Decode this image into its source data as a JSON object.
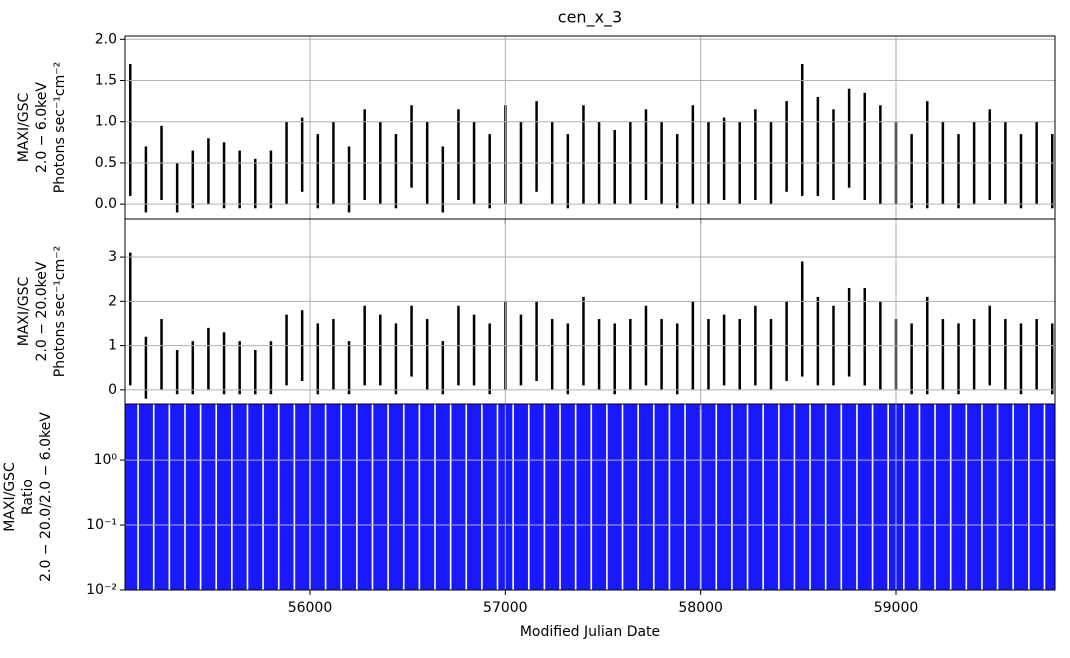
{
  "chart_data": [
    {
      "type": "errorbar",
      "title": "cen_x_3",
      "ylabel": [
        "MAXI/GSC",
        "2.0 − 6.0keV",
        "Photons sec⁻¹cm⁻²"
      ],
      "color": "#000000",
      "grid": true,
      "log": false,
      "xlim": [
        55053,
        59814
      ],
      "xticks": [
        56000,
        57000,
        58000,
        59000
      ],
      "ylim": [
        -0.18,
        2.04
      ],
      "yticks": [
        {
          "value": 0,
          "label": "0.0"
        },
        0.5,
        {
          "value": 1,
          "label": "1.0"
        },
        1.5,
        {
          "value": 2,
          "label": "2.0"
        }
      ],
      "x": [
        55080,
        55160,
        55240,
        55320,
        55400,
        55480,
        55560,
        55640,
        55720,
        55800,
        55880,
        55960,
        56040,
        56120,
        56200,
        56280,
        56360,
        56440,
        56520,
        56600,
        56680,
        56760,
        56840,
        56920,
        57000,
        57080,
        57160,
        57240,
        57320,
        57400,
        57480,
        57560,
        57640,
        57720,
        57800,
        57880,
        57960,
        58040,
        58120,
        58200,
        58280,
        58360,
        58440,
        58520,
        58600,
        58680,
        58760,
        58840,
        58920,
        59000,
        59080,
        59160,
        59240,
        59320,
        59400,
        59480,
        59560,
        59640,
        59720,
        59800
      ],
      "values": [
        0.9,
        0.3,
        0.5,
        0.2,
        0.3,
        0.4,
        0.35,
        0.3,
        0.25,
        0.3,
        0.5,
        0.6,
        0.4,
        0.5,
        0.3,
        0.6,
        0.5,
        0.4,
        0.7,
        0.5,
        0.3,
        0.6,
        0.5,
        0.4,
        0.6,
        0.5,
        0.7,
        0.5,
        0.4,
        0.6,
        0.5,
        0.45,
        0.5,
        0.6,
        0.5,
        0.4,
        0.6,
        0.5,
        0.55,
        0.5,
        0.6,
        0.5,
        0.7,
        0.9,
        0.7,
        0.6,
        0.8,
        0.7,
        0.6,
        0.5,
        0.4,
        0.6,
        0.5,
        0.4,
        0.5,
        0.6,
        0.5,
        0.4,
        0.5,
        0.4
      ],
      "errors": [
        0.8,
        0.4,
        0.45,
        0.3,
        0.35,
        0.4,
        0.4,
        0.35,
        0.3,
        0.35,
        0.5,
        0.45,
        0.45,
        0.5,
        0.4,
        0.55,
        0.5,
        0.45,
        0.5,
        0.5,
        0.4,
        0.55,
        0.5,
        0.45,
        0.6,
        0.5,
        0.55,
        0.5,
        0.45,
        0.6,
        0.5,
        0.45,
        0.5,
        0.55,
        0.5,
        0.45,
        0.6,
        0.5,
        0.5,
        0.5,
        0.55,
        0.5,
        0.55,
        0.8,
        0.6,
        0.55,
        0.6,
        0.65,
        0.6,
        0.5,
        0.45,
        0.65,
        0.5,
        0.45,
        0.5,
        0.55,
        0.5,
        0.45,
        0.5,
        0.45
      ]
    },
    {
      "type": "errorbar",
      "ylabel": [
        "MAXI/GSC",
        "2.0 − 20.0keV",
        "Photons sec⁻¹cm⁻²"
      ],
      "color": "#000000",
      "grid": true,
      "log": false,
      "xlim": [
        55053,
        59814
      ],
      "xticks": [
        56000,
        57000,
        58000,
        59000
      ],
      "ylim": [
        -0.32,
        3.86
      ],
      "yticks": [
        0,
        1,
        2,
        3
      ],
      "x": [
        55080,
        55160,
        55240,
        55320,
        55400,
        55480,
        55560,
        55640,
        55720,
        55800,
        55880,
        55960,
        56040,
        56120,
        56200,
        56280,
        56360,
        56440,
        56520,
        56600,
        56680,
        56760,
        56840,
        56920,
        57000,
        57080,
        57160,
        57240,
        57320,
        57400,
        57480,
        57560,
        57640,
        57720,
        57800,
        57880,
        57960,
        58040,
        58120,
        58200,
        58280,
        58360,
        58440,
        58520,
        58600,
        58680,
        58760,
        58840,
        58920,
        59000,
        59080,
        59160,
        59240,
        59320,
        59400,
        59480,
        59560,
        59640,
        59720,
        59800
      ],
      "values": [
        1.6,
        0.5,
        0.8,
        0.4,
        0.5,
        0.7,
        0.6,
        0.5,
        0.4,
        0.5,
        0.9,
        1.0,
        0.7,
        0.8,
        0.5,
        1.0,
        0.9,
        0.7,
        1.1,
        0.8,
        0.5,
        1.0,
        0.9,
        0.7,
        1.0,
        0.9,
        1.1,
        0.8,
        0.7,
        1.1,
        0.8,
        0.7,
        0.8,
        1.0,
        0.8,
        0.7,
        1.0,
        0.8,
        0.9,
        0.8,
        1.0,
        0.8,
        1.1,
        1.6,
        1.1,
        1.0,
        1.3,
        1.2,
        1.0,
        0.8,
        0.7,
        1.0,
        0.8,
        0.7,
        0.8,
        1.0,
        0.8,
        0.7,
        0.8,
        0.7
      ],
      "errors": [
        1.5,
        0.7,
        0.8,
        0.5,
        0.6,
        0.7,
        0.7,
        0.6,
        0.5,
        0.6,
        0.8,
        0.8,
        0.8,
        0.8,
        0.6,
        0.9,
        0.8,
        0.8,
        0.8,
        0.8,
        0.6,
        0.9,
        0.8,
        0.8,
        1.0,
        0.8,
        0.9,
        0.8,
        0.8,
        1.0,
        0.8,
        0.8,
        0.8,
        0.9,
        0.8,
        0.8,
        1.0,
        0.8,
        0.8,
        0.8,
        0.9,
        0.8,
        0.9,
        1.3,
        1.0,
        0.9,
        1.0,
        1.1,
        1.0,
        0.8,
        0.8,
        1.1,
        0.8,
        0.8,
        0.8,
        0.9,
        0.8,
        0.8,
        0.8,
        0.8
      ]
    },
    {
      "type": "errorbar",
      "ylabel": [
        "MAXI/GSC",
        "Ratio",
        "2.0 − 20.0/2.0 − 6.0keV"
      ],
      "xlabel": "Modified Julian Date",
      "color": "#0000ff",
      "grid": true,
      "log": true,
      "xlim": [
        55053,
        59814
      ],
      "xticks": [
        56000,
        57000,
        58000,
        59000
      ],
      "ylim": [
        0.01,
        7.3
      ],
      "yticks": [
        {
          "value": 0.01,
          "label": "10⁻²"
        },
        {
          "value": 0.1,
          "label": "10⁻¹"
        },
        {
          "value": 1,
          "label": "10⁰"
        }
      ],
      "x": [
        55080,
        55160,
        55240,
        55320,
        55400,
        55480,
        55560,
        55640,
        55720,
        55800,
        55880,
        55960,
        56040,
        56120,
        56200,
        56280,
        56360,
        56440,
        56520,
        56600,
        56680,
        56760,
        56840,
        56920,
        57000,
        57080,
        57160,
        57240,
        57320,
        57400,
        57480,
        57560,
        57640,
        57720,
        57800,
        57880,
        57960,
        58040,
        58120,
        58200,
        58280,
        58360,
        58440,
        58520,
        58600,
        58680,
        58760,
        58840,
        58920,
        59000,
        59080,
        59160,
        59240,
        59320,
        59400,
        59480,
        59560,
        59640,
        59720,
        59800
      ],
      "values": [
        1.8,
        1.7,
        1.6,
        2,
        1.7,
        1.8,
        1.7,
        1.7,
        1.6,
        1.7,
        1.8,
        1.7,
        1.8,
        1.6,
        1.7,
        1.7,
        1.8,
        1.8,
        1.6,
        1.6,
        1.7,
        1.7,
        1.8,
        1.8,
        1.7,
        1.8,
        1.6,
        1.6,
        1.8,
        1.8,
        1.6,
        1.6,
        1.8,
        1.7,
        1.6,
        1.8,
        1.7,
        1.6,
        1.6,
        1.6,
        1.7,
        1.6,
        1.6,
        1.8,
        1.6,
        1.7,
        1.6,
        1.7,
        1.7,
        1.6,
        1.8,
        1.7,
        1.6,
        1.8,
        1.6,
        1.7,
        1.6,
        1.8,
        1.6,
        1.8
      ],
      "errors": [
        8,
        8,
        8,
        9,
        8,
        8,
        8,
        8,
        8,
        8,
        8,
        8,
        8,
        8,
        8,
        8,
        8,
        8,
        8,
        8,
        8,
        8,
        8,
        8,
        8,
        8,
        8,
        8,
        8,
        8,
        8,
        8,
        8,
        8,
        8,
        8,
        8,
        8,
        8,
        8,
        8,
        8,
        8,
        8,
        8,
        8,
        8,
        8,
        8,
        8,
        8,
        8,
        8,
        8,
        8,
        8,
        8,
        8,
        8,
        8
      ]
    }
  ]
}
